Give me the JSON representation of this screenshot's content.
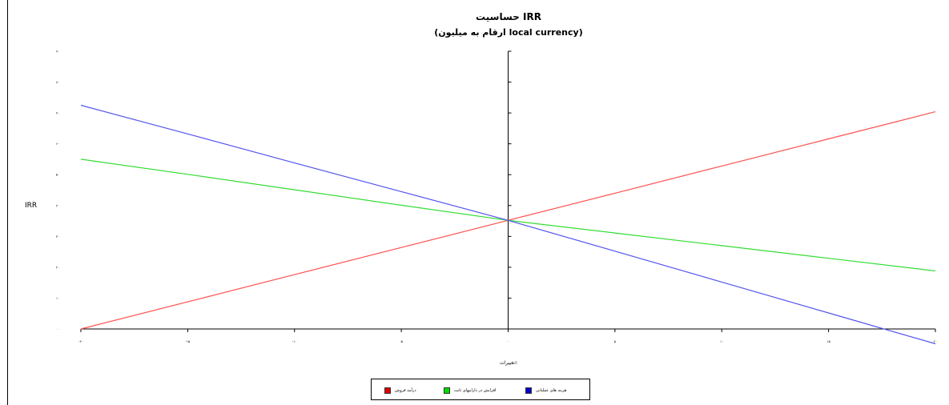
{
  "chart_data": {
    "type": "line",
    "title": "حساسیت IRR",
    "subtitle": "(ارقام به میلیون local currency)",
    "ylabel": "IRR",
    "xlabel": "تغییرات٪",
    "x": [
      -20,
      -15,
      -10,
      -5,
      0,
      5,
      10,
      15,
      20
    ],
    "x_tick_labels": [
      "-۲۰",
      "-۱۵",
      "-۱۰",
      "-۵",
      "۰",
      "۵",
      "۱۰",
      "۱۵",
      "۲۰"
    ],
    "y_tick_labels": [
      "۰",
      "۱۰",
      "۲۰",
      "۳۰",
      "۴۰",
      "۵۰",
      "۶۰",
      "۷۰",
      "۸۰",
      "۹۰"
    ],
    "ylim": [
      0,
      90
    ],
    "xlim": [
      -20,
      20
    ],
    "grid": false,
    "legend_position": "bottom",
    "series": [
      {
        "name": "درآمد فروش",
        "color": "#ff5050",
        "legend_color": "#e00000",
        "values": [
          0,
          8.8,
          17.6,
          26.4,
          35.2,
          44.0,
          52.8,
          61.6,
          70.4
        ]
      },
      {
        "name": "افزایش در داراییهای ثابت",
        "color": "#33dd33",
        "legend_color": "#00e000",
        "values": [
          55.0,
          50.1,
          45.1,
          40.1,
          35.2,
          31.1,
          27.0,
          22.9,
          18.8
        ]
      },
      {
        "name": "هزینه های عملیاتی",
        "color": "#5555ee",
        "legend_color": "#0000cc",
        "values": [
          72.5,
          63.2,
          53.8,
          44.5,
          35.2,
          25.2,
          15.2,
          5.2,
          -4.8
        ]
      }
    ]
  },
  "legend": {
    "items": [
      {
        "label": "درآمد فروش",
        "color": "#dd0000"
      },
      {
        "label": "افزایش در داراییهای ثابت",
        "color": "#00dd00"
      },
      {
        "label": "هزینه های عملیاتی",
        "color": "#0000cc"
      }
    ]
  }
}
